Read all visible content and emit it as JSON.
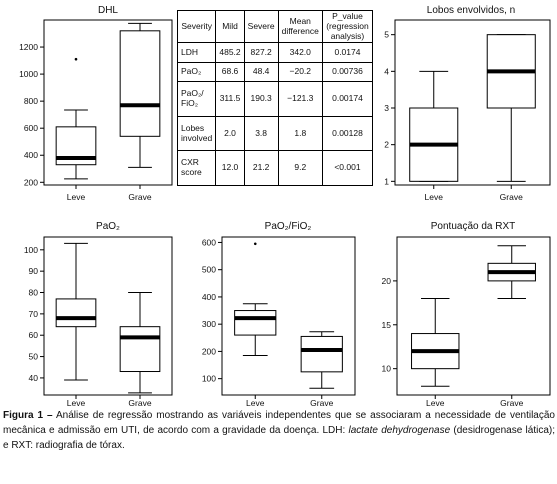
{
  "chart_data": [
    {
      "type": "box",
      "title": "DHL",
      "categories": [
        "Leve",
        "Grave"
      ],
      "yticks": [
        200,
        400,
        600,
        800,
        1000,
        1200
      ],
      "ylim": [
        180,
        1400
      ],
      "boxes": [
        {
          "category": "Leve",
          "whisker_low": 225,
          "q1": 330,
          "median": 380,
          "q3": 610,
          "whisker_high": 735,
          "outliers": [
            1110
          ]
        },
        {
          "category": "Grave",
          "whisker_low": 310,
          "q1": 540,
          "median": 770,
          "q3": 1320,
          "whisker_high": 1375,
          "outliers": []
        }
      ]
    },
    {
      "type": "box",
      "title": "Lobos envolvidos, n",
      "categories": [
        "Leve",
        "Grave"
      ],
      "yticks": [
        1,
        2,
        3,
        4,
        5
      ],
      "ylim": [
        0.9,
        5.4
      ],
      "boxes": [
        {
          "category": "Leve",
          "whisker_low": 1,
          "q1": 1,
          "median": 2,
          "q3": 3,
          "whisker_high": 4,
          "outliers": []
        },
        {
          "category": "Grave",
          "whisker_low": 1,
          "q1": 3,
          "median": 4,
          "q3": 5,
          "whisker_high": 5,
          "outliers": []
        }
      ]
    },
    {
      "type": "box",
      "title": "PaO₂",
      "categories": [
        "Leve",
        "Grave"
      ],
      "yticks": [
        40,
        50,
        60,
        70,
        80,
        90,
        100
      ],
      "ylim": [
        32,
        106
      ],
      "boxes": [
        {
          "category": "Leve",
          "whisker_low": 39,
          "q1": 64,
          "median": 68,
          "q3": 77,
          "whisker_high": 103,
          "outliers": []
        },
        {
          "category": "Grave",
          "whisker_low": 33,
          "q1": 43,
          "median": 59,
          "q3": 64,
          "whisker_high": 80,
          "outliers": []
        }
      ]
    },
    {
      "type": "box",
      "title": "PaO₂/FiO₂",
      "categories": [
        "Leve",
        "Grave"
      ],
      "yticks": [
        100,
        200,
        300,
        400,
        500,
        600
      ],
      "ylim": [
        40,
        620
      ],
      "boxes": [
        {
          "category": "Leve",
          "whisker_low": 185,
          "q1": 260,
          "median": 322,
          "q3": 350,
          "whisker_high": 375,
          "outliers": [
            595
          ]
        },
        {
          "category": "Grave",
          "whisker_low": 65,
          "q1": 125,
          "median": 205,
          "q3": 255,
          "whisker_high": 272,
          "outliers": []
        }
      ]
    },
    {
      "type": "box",
      "title": "Pontuação da RXT",
      "categories": [
        "Leve",
        "Grave"
      ],
      "yticks": [
        10,
        15,
        20
      ],
      "ylim": [
        7,
        25
      ],
      "boxes": [
        {
          "category": "Leve",
          "whisker_low": 8,
          "q1": 10,
          "median": 12,
          "q3": 14,
          "whisker_high": 18,
          "outliers": []
        },
        {
          "category": "Grave",
          "whisker_low": 18,
          "q1": 20,
          "median": 21,
          "q3": 22,
          "whisker_high": 24,
          "outliers": []
        }
      ]
    },
    {
      "type": "table",
      "columns": [
        "Severity",
        "Mild",
        "Severe",
        "Mean difference",
        "P_value (regression analysis)"
      ],
      "rows": [
        [
          "LDH",
          "485.2",
          "827.2",
          "342.0",
          "0.0174"
        ],
        [
          "PaO₂",
          "68.6",
          "48.4",
          "−20.2",
          "0.00736"
        ],
        [
          "PaO₂/ FiO₂",
          "311.5",
          "190.3",
          "−121.3",
          "0.00174"
        ],
        [
          "Lobes involved",
          "2.0",
          "3.8",
          "1.8",
          "0.00128"
        ],
        [
          "CXR score",
          "12.0",
          "21.2",
          "9.2",
          "<0.001"
        ]
      ]
    }
  ],
  "caption": {
    "lead": "Figura 1 –",
    "text": " Análise de regressão mostrando as variáveis independentes que se associaram a necessidade de ventilação mecânica e admissão em UTI, de acordo com a gravidade da doença. LDH: ",
    "ldh_term": "lactate dehydrogenase",
    "ldh_pt": " (desidrogenase lática); e RXT: radiografia de tórax."
  }
}
